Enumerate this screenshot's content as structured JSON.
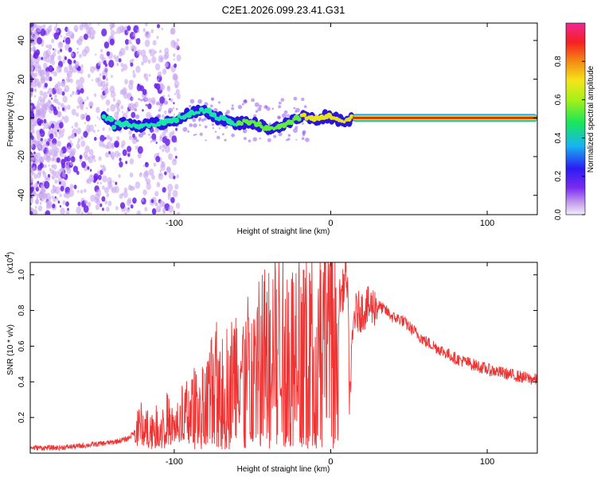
{
  "title": "C2E1.2026.099.23.41.G31",
  "chart_data": [
    {
      "type": "heatmap",
      "name": "spectrogram",
      "xlabel": "Height of straight line (km)",
      "ylabel": "Frequency (Hz)",
      "xlim": [
        -192,
        132
      ],
      "ylim": [
        -50,
        49
      ],
      "xticks": [
        -100,
        0,
        100
      ],
      "yticks": [
        -40,
        -20,
        0,
        20,
        40
      ],
      "ridge": [
        {
          "x": -140,
          "y": -4
        },
        {
          "x": -130,
          "y": -3
        },
        {
          "x": -120,
          "y": -4
        },
        {
          "x": -110,
          "y": -3
        },
        {
          "x": -100,
          "y": -1
        },
        {
          "x": -90,
          "y": 2
        },
        {
          "x": -80,
          "y": 4
        },
        {
          "x": -72,
          "y": 0
        },
        {
          "x": -62,
          "y": -3
        },
        {
          "x": -52,
          "y": -2
        },
        {
          "x": -42,
          "y": -5
        },
        {
          "x": -35,
          "y": -5
        },
        {
          "x": -25,
          "y": -2
        },
        {
          "x": -18,
          "y": 1
        },
        {
          "x": -10,
          "y": -1
        },
        {
          "x": -3,
          "y": 1
        },
        {
          "x": 3,
          "y": 0
        },
        {
          "x": 8,
          "y": -2
        },
        {
          "x": 14,
          "y": 0
        },
        {
          "x": 132,
          "y": 0
        }
      ],
      "colorbar": {
        "label": "Normalized spectral amplitude",
        "range": [
          0,
          1
        ],
        "ticks": [
          0.0,
          0.2,
          0.4,
          0.6,
          0.8
        ],
        "tick_labels": [
          "0.0",
          "0.2",
          "0.4",
          "0.6",
          "0.8"
        ]
      }
    },
    {
      "type": "line",
      "name": "snr",
      "xlabel": "Height of straight line (km)",
      "ylabel": "SNR (10 * v/v)",
      "y_multiplier": "(x10",
      "y_multiplier_exp": "4",
      "y_multiplier_close": ")",
      "xlim": [
        -192,
        132
      ],
      "ylim": [
        0,
        1.07
      ],
      "xticks": [
        -100,
        0,
        100
      ],
      "yticks": [
        0.2,
        0.4,
        0.6,
        0.8,
        1.0
      ],
      "ytick_labels": [
        "0.2",
        "0.4",
        "0.6",
        "0.8",
        "1.0"
      ],
      "color": "#ee3333",
      "series": [
        {
          "name": "SNR",
          "x": [
            -192,
            -175,
            -160,
            -150,
            -140,
            -130,
            -125,
            -120,
            -115,
            -110,
            -105,
            -100,
            -95,
            -90,
            -85,
            -80,
            -75,
            -70,
            -65,
            -60,
            -55,
            -50,
            -45,
            -40,
            -35,
            -30,
            -25,
            -20,
            -15,
            -10,
            -5,
            0,
            5,
            8,
            10,
            11,
            12,
            15,
            20,
            25,
            30,
            35,
            40,
            45,
            50,
            55,
            60,
            70,
            80,
            90,
            100,
            110,
            120,
            132
          ],
          "y": [
            0.03,
            0.03,
            0.04,
            0.05,
            0.06,
            0.08,
            0.12,
            0.18,
            0.14,
            0.16,
            0.2,
            0.14,
            0.22,
            0.25,
            0.3,
            0.3,
            0.4,
            0.45,
            0.42,
            0.5,
            0.48,
            0.55,
            0.6,
            0.62,
            0.66,
            0.7,
            0.62,
            0.75,
            0.7,
            0.72,
            0.8,
            0.78,
            0.85,
            0.92,
            1.02,
            0.85,
            0.3,
            0.78,
            0.8,
            0.82,
            0.83,
            0.8,
            0.76,
            0.75,
            0.71,
            0.67,
            0.63,
            0.58,
            0.53,
            0.5,
            0.47,
            0.45,
            0.43,
            0.41
          ]
        }
      ]
    }
  ]
}
